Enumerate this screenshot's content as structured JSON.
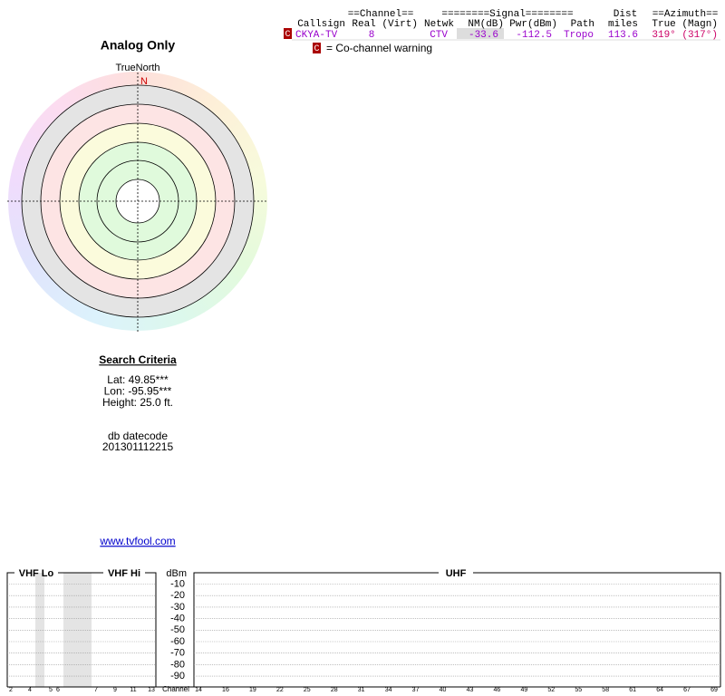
{
  "table": {
    "group_headers": [
      "==Channel==",
      "========Signal========",
      "Dist",
      "==Azimuth=="
    ],
    "columns": [
      "Callsign",
      "Real (Virt)",
      "Netwk",
      "NM(dB)",
      "Pwr(dBm)",
      "Path",
      "miles",
      "True (Magn)"
    ],
    "rows": [
      {
        "flag": "C",
        "cells": [
          "CKYA-TV",
          "8",
          "CTV",
          "-33.6",
          "-112.5",
          "Tropo",
          "113.6",
          "319° (317°)"
        ]
      }
    ]
  },
  "legend": {
    "flag": "C",
    "text": "= Co-channel warning"
  },
  "radar": {
    "title": "Analog Only",
    "north_label": "TrueNorth",
    "north": "N"
  },
  "search_criteria": {
    "heading": "Search Criteria",
    "lines": [
      "Lat: 49.85***",
      "Lon: -95.95***",
      "Height: 25.0 ft."
    ]
  },
  "db_datecode": {
    "label": "db datecode",
    "value": "201301112215"
  },
  "link": "www.tvfool.com",
  "spectrum": {
    "vhf_lo": "VHF Lo",
    "vhf_hi": "VHF Hi",
    "uhf": "UHF",
    "dbm_label": "dBm",
    "dbm_ticks": [
      "-10",
      "-20",
      "-30",
      "-40",
      "-50",
      "-60",
      "-70",
      "-80",
      "-90"
    ],
    "channel_label": "Channel",
    "vhf_channels": [
      "2",
      "4",
      "5",
      "6",
      "7",
      "9",
      "11",
      "13"
    ],
    "uhf_channels": [
      "14",
      "16",
      "19",
      "22",
      "25",
      "28",
      "31",
      "34",
      "37",
      "40",
      "43",
      "46",
      "49",
      "52",
      "55",
      "58",
      "61",
      "64",
      "67",
      "69"
    ]
  }
}
